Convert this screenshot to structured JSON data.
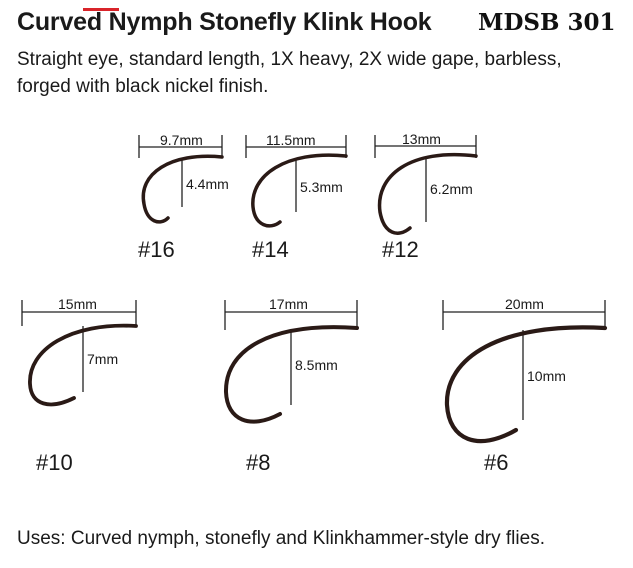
{
  "header": {
    "title": "Curved Nymph Stonefly Klink Hook",
    "model": "MDSB 301"
  },
  "description": {
    "line1": "Straight eye, standard length, 1X heavy, 2X wide gape, barbless,",
    "line2": "forged with black nickel finish."
  },
  "hooks": [
    {
      "size": "#16",
      "width": "9.7mm",
      "gape": "4.4mm"
    },
    {
      "size": "#14",
      "width": "11.5mm",
      "gape": "5.3mm"
    },
    {
      "size": "#12",
      "width": "13mm",
      "gape": "6.2mm"
    },
    {
      "size": "#10",
      "width": "15mm",
      "gape": "7mm"
    },
    {
      "size": "#8",
      "width": "17mm",
      "gape": "8.5mm"
    },
    {
      "size": "#6",
      "width": "20mm",
      "gape": "10mm"
    }
  ],
  "footer": {
    "uses": "Uses: Curved nymph, stonefly and Klinkhammer-style dry flies."
  },
  "colors": {
    "hook": "#2a1a16",
    "text": "#1a1a1a",
    "accent": "#d9242a"
  }
}
